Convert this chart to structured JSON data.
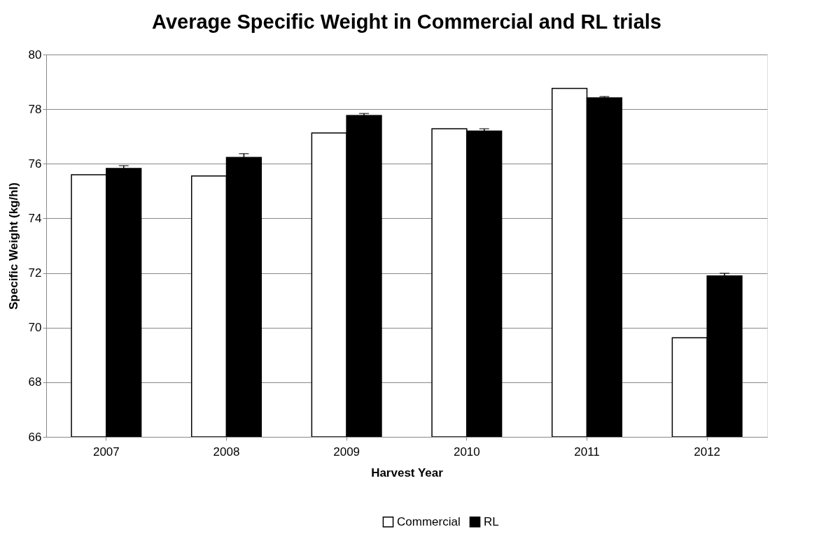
{
  "chart_data": {
    "type": "bar",
    "title": "Average Specific Weight in Commercial and RL trials",
    "xlabel": "Harvest Year",
    "ylabel": "Specific Weight (kg/hl)",
    "categories": [
      "2007",
      "2008",
      "2009",
      "2010",
      "2011",
      "2012"
    ],
    "series": [
      {
        "name": "Commercial",
        "color": "#ffffff",
        "values": [
          75.6,
          75.55,
          77.13,
          77.28,
          78.76,
          69.63
        ]
      },
      {
        "name": "RL",
        "color": "#000000",
        "values": [
          75.83,
          76.23,
          77.77,
          77.2,
          78.41,
          71.89
        ],
        "errors": [
          0.1,
          0.14,
          0.07,
          0.08,
          0.05,
          0.1
        ]
      }
    ],
    "ylim": [
      66,
      80
    ],
    "yticks": [
      66,
      68,
      70,
      72,
      74,
      76,
      78,
      80
    ],
    "grid": "y",
    "legend": "bottom"
  }
}
